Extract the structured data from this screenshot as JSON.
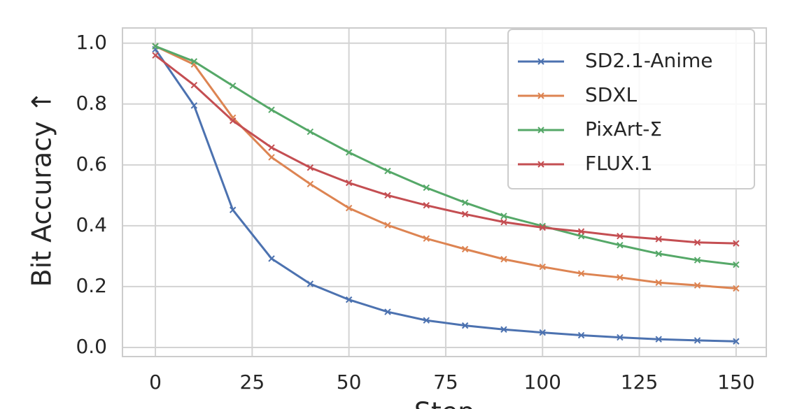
{
  "chart_data": {
    "type": "line",
    "x_label": "Step",
    "y_label": "Bit Accuracy ↑",
    "x": [
      0,
      10,
      20,
      30,
      40,
      50,
      60,
      70,
      80,
      90,
      100,
      110,
      120,
      130,
      140,
      150
    ],
    "series": [
      {
        "name": "SD2.1-Anime",
        "color": "#4c72b0",
        "values": [
          0.98,
          0.795,
          0.452,
          0.292,
          0.209,
          0.157,
          0.117,
          0.089,
          0.072,
          0.059,
          0.049,
          0.04,
          0.033,
          0.027,
          0.023,
          0.02
        ]
      },
      {
        "name": "SDXL",
        "color": "#dd8452",
        "values": [
          0.99,
          0.93,
          0.755,
          0.625,
          0.537,
          0.458,
          0.402,
          0.358,
          0.323,
          0.29,
          0.265,
          0.243,
          0.23,
          0.213,
          0.204,
          0.194
        ]
      },
      {
        "name": "PixArt-Σ",
        "color": "#55a868",
        "values": [
          0.99,
          0.94,
          0.86,
          0.781,
          0.709,
          0.641,
          0.58,
          0.525,
          0.476,
          0.432,
          0.399,
          0.366,
          0.336,
          0.308,
          0.287,
          0.272
        ]
      },
      {
        "name": "FLUX.1",
        "color": "#c44e52",
        "values": [
          0.96,
          0.862,
          0.745,
          0.657,
          0.591,
          0.541,
          0.5,
          0.467,
          0.438,
          0.412,
          0.394,
          0.381,
          0.366,
          0.356,
          0.345,
          0.342
        ]
      }
    ],
    "xlim": [
      -8.5,
      157.8
    ],
    "ylim": [
      -0.03,
      1.05
    ],
    "xticks": [
      0,
      25,
      50,
      75,
      100,
      125,
      150
    ],
    "yticks": [
      {
        "value": 0,
        "label": "0.0"
      },
      {
        "value": 0.2,
        "label": "0.2"
      },
      {
        "value": 0.4,
        "label": "0.4"
      },
      {
        "value": 0.6,
        "label": "0.6"
      },
      {
        "value": 0.8,
        "label": "0.8"
      },
      {
        "value": 1,
        "label": "1.0"
      }
    ],
    "grid": true,
    "legend": "upper right"
  }
}
